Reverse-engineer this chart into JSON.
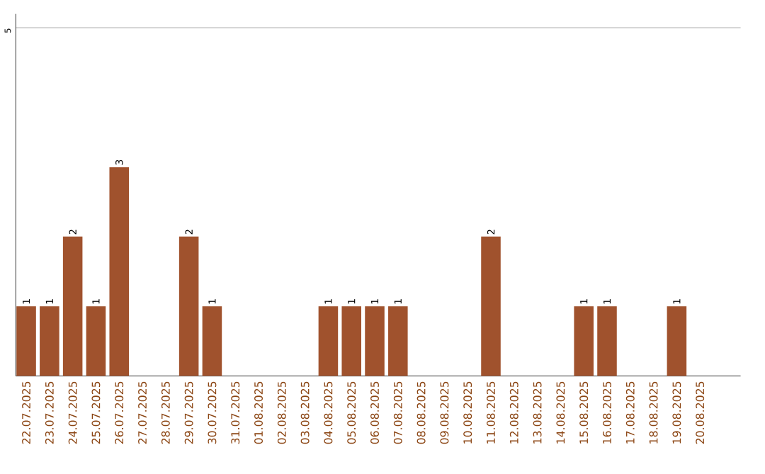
{
  "chart_data": {
    "type": "bar",
    "categories": [
      "22.07.2025",
      "23.07.2025",
      "24.07.2025",
      "25.07.2025",
      "26.07.2025",
      "27.07.2025",
      "28.07.2025",
      "29.07.2025",
      "30.07.2025",
      "31.07.2025",
      "01.08.2025",
      "02.08.2025",
      "03.08.2025",
      "04.08.2025",
      "05.08.2025",
      "06.08.2025",
      "07.08.2025",
      "08.08.2025",
      "09.08.2025",
      "10.08.2025",
      "11.08.2025",
      "12.08.2025",
      "13.08.2025",
      "14.08.2025",
      "15.08.2025",
      "16.08.2025",
      "17.08.2025",
      "18.08.2025",
      "19.08.2025",
      "20.08.2025"
    ],
    "values": [
      1,
      1,
      2,
      1,
      3,
      0,
      0,
      2,
      1,
      0,
      0,
      0,
      0,
      1,
      1,
      1,
      1,
      0,
      0,
      0,
      2,
      0,
      0,
      0,
      1,
      1,
      0,
      0,
      1,
      0
    ],
    "value_labels": [
      "1",
      "1",
      "2",
      "1",
      "3",
      null,
      null,
      "2",
      "1",
      null,
      null,
      null,
      null,
      "1",
      "1",
      "1",
      "1",
      null,
      null,
      null,
      "2",
      null,
      null,
      null,
      "1",
      "1",
      null,
      null,
      "1",
      null
    ],
    "color": "#a0522d",
    "ylim": [
      0,
      5.2
    ],
    "yticks": [
      5
    ],
    "grid": "y"
  }
}
